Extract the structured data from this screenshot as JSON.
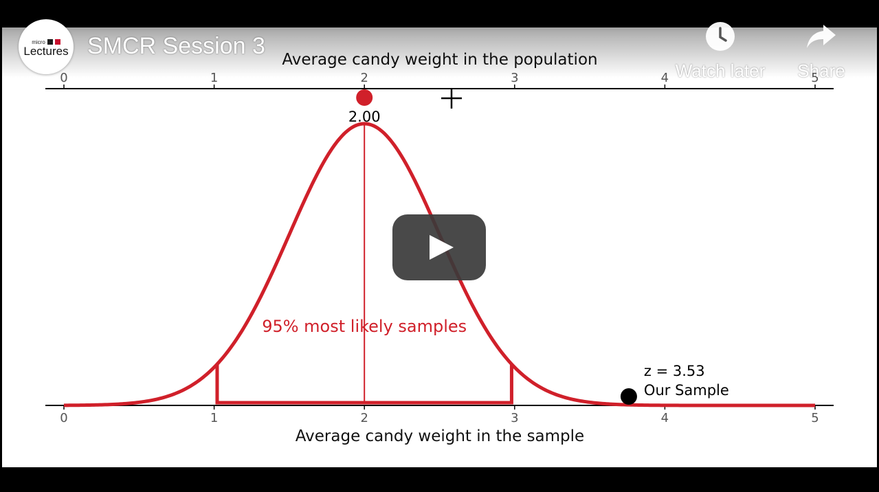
{
  "player": {
    "title": "SMCR Session 3",
    "channel_logo": {
      "line1": "micro",
      "line2": "Lectures",
      "brand_colors": [
        "#1a1a1a",
        "#c8102e"
      ]
    },
    "actions": [
      {
        "label": "Watch later",
        "icon": "clock-icon"
      },
      {
        "label": "Share",
        "icon": "share-arrow-icon"
      }
    ],
    "play_icon": "play-icon",
    "cursor_icon": "crosshair-icon",
    "colors": {
      "curve": "#d0202a",
      "marker_sample": "#000000",
      "axis": "#000000",
      "play_bg": "#3a3a3a"
    }
  },
  "chart_data": {
    "type": "line",
    "top_axis": {
      "label": "Average candy weight in the population",
      "ticks": [
        "0",
        "1",
        "2",
        "3",
        "4",
        "5"
      ],
      "range": [
        0,
        5
      ]
    },
    "bottom_axis": {
      "label": "Average candy weight in the sample",
      "ticks": [
        "0",
        "1",
        "2",
        "3",
        "4",
        "5"
      ],
      "range": [
        0,
        5
      ]
    },
    "distribution": {
      "kind": "normal",
      "mean": 2.0,
      "sd": 0.5,
      "x_range": [
        0,
        5
      ]
    },
    "population_mean": {
      "x": 2.0,
      "label": "2.00"
    },
    "interval": {
      "low": 1.02,
      "high": 2.98,
      "label": "95% most likely samples"
    },
    "sample": {
      "x": 3.76,
      "z_label": "z = 3.53",
      "label": "Our Sample"
    },
    "cursor_at": 2.58,
    "grid": false
  }
}
